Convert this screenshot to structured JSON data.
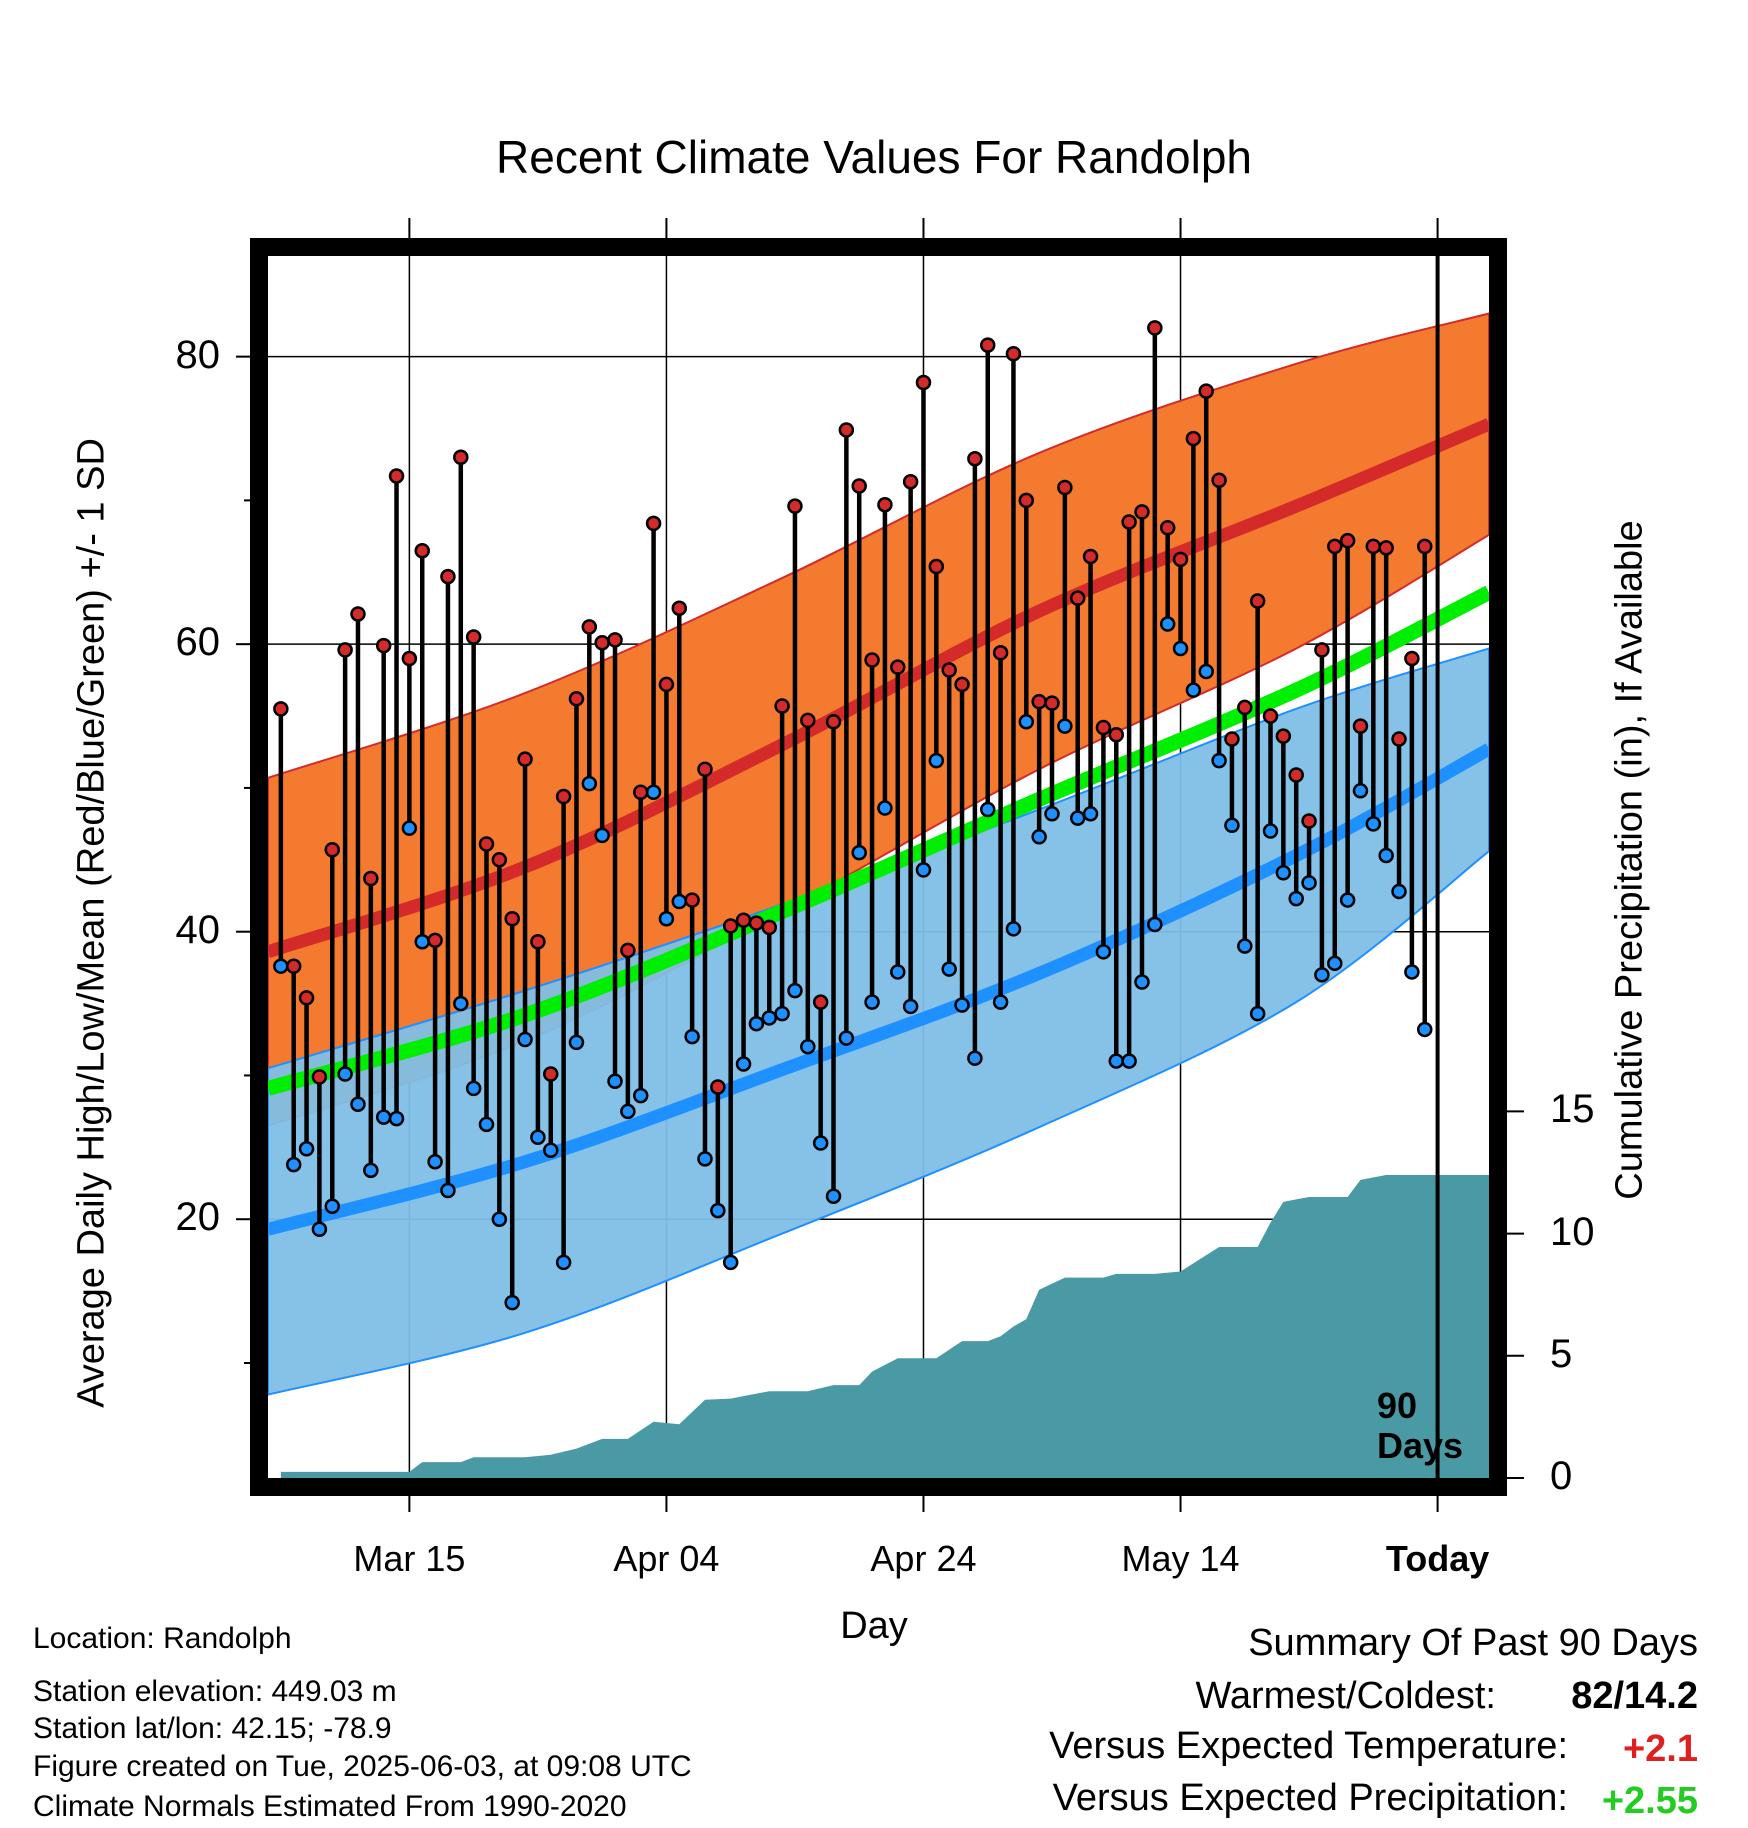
{
  "title": "Recent Climate Values For Randolph",
  "y_axis_label": "Average Daily High/Low/Mean (Red/Blue/Green) +/- 1 SD",
  "y2_axis_label": "Cumulative Precipitation (in), If Available",
  "x_axis_label": "Day",
  "window_label_line1": "90",
  "window_label_line2": "Days",
  "info": {
    "location": "Location: Randolph",
    "elevation": "Station elevation: 449.03 m",
    "latlon": "Station lat/lon: 42.15; -78.9",
    "created": "Figure created on Tue, 2025-06-03, at 09:08 UTC",
    "normals": "Climate Normals Estimated From 1990-2020"
  },
  "summary": {
    "heading": "Summary Of Past 90 Days",
    "warmest_coldest_label": "Warmest/Coldest:",
    "warmest_coldest_value": "82/14.2",
    "temp_label": "Versus Expected Temperature:",
    "temp_value": "+2.1",
    "precip_label": "Versus Expected Precipitation:",
    "precip_value": "+2.55"
  },
  "colors": {
    "high_band": "#f47a30",
    "high_line": "#d42a2a",
    "low_band": "#7fbfe6",
    "low_line": "#1e90ff",
    "mean_line": "#00ee00",
    "precip": "#4a9aa5",
    "temp_positive": "#e02020",
    "precip_positive": "#22cc22"
  },
  "chart_data": {
    "type": "line",
    "x_unit": "day",
    "xlim": [
      "2025-03-04",
      "2025-06-07"
    ],
    "x_tick_labels": [
      "Mar 15",
      "Apr 04",
      "Apr 24",
      "May 14",
      "Today"
    ],
    "x_tick_dates": [
      "2025-03-15",
      "2025-04-04",
      "2025-04-24",
      "2025-05-14",
      "2025-06-03"
    ],
    "today": "2025-06-03",
    "ylim": [
      2,
      87
    ],
    "y_ticks": [
      20,
      40,
      60,
      80
    ],
    "y2lim": [
      0,
      50
    ],
    "y2_ticks": [
      0,
      5,
      10,
      15
    ],
    "grid": true,
    "normals": {
      "dates": [
        "2025-03-04",
        "2025-03-24",
        "2025-04-13",
        "2025-05-03",
        "2025-05-23",
        "2025-06-07"
      ],
      "high_mean": [
        38.6,
        44.5,
        53.0,
        62.3,
        69.6,
        75.3
      ],
      "high_sd_upper": [
        50.7,
        56.6,
        64.6,
        73.3,
        79.5,
        83.0
      ],
      "high_sd_lower": [
        26.5,
        32.4,
        41.4,
        51.3,
        59.7,
        67.6
      ],
      "mean_normal": [
        29.1,
        34.2,
        41.4,
        49.2,
        56.8,
        63.6
      ],
      "low_mean": [
        19.3,
        24.0,
        30.4,
        37.1,
        45.3,
        52.7
      ],
      "low_sd_upper": [
        30.5,
        35.9,
        41.9,
        48.5,
        55.5,
        59.7
      ],
      "low_sd_lower": [
        7.8,
        12.1,
        19.0,
        26.4,
        35.1,
        45.6
      ]
    },
    "series": [
      {
        "name": "High",
        "color": "#d42a2a",
        "x": [
          "2025-03-05",
          "2025-03-06",
          "2025-03-07",
          "2025-03-08",
          "2025-03-09",
          "2025-03-10",
          "2025-03-11",
          "2025-03-12",
          "2025-03-13",
          "2025-03-14",
          "2025-03-15",
          "2025-03-16",
          "2025-03-17",
          "2025-03-18",
          "2025-03-19",
          "2025-03-20",
          "2025-03-21",
          "2025-03-22",
          "2025-03-23",
          "2025-03-24",
          "2025-03-25",
          "2025-03-26",
          "2025-03-27",
          "2025-03-28",
          "2025-03-29",
          "2025-03-30",
          "2025-03-31",
          "2025-04-01",
          "2025-04-02",
          "2025-04-03",
          "2025-04-04",
          "2025-04-05",
          "2025-04-06",
          "2025-04-07",
          "2025-04-08",
          "2025-04-09",
          "2025-04-10",
          "2025-04-11",
          "2025-04-12",
          "2025-04-13",
          "2025-04-14",
          "2025-04-15",
          "2025-04-16",
          "2025-04-17",
          "2025-04-18",
          "2025-04-19",
          "2025-04-20",
          "2025-04-21",
          "2025-04-22",
          "2025-04-23",
          "2025-04-24",
          "2025-04-25",
          "2025-04-26",
          "2025-04-27",
          "2025-04-28",
          "2025-04-29",
          "2025-04-30",
          "2025-05-01",
          "2025-05-02",
          "2025-05-03",
          "2025-05-04",
          "2025-05-05",
          "2025-05-06",
          "2025-05-07",
          "2025-05-08",
          "2025-05-09",
          "2025-05-10",
          "2025-05-11",
          "2025-05-12",
          "2025-05-13",
          "2025-05-14",
          "2025-05-15",
          "2025-05-16",
          "2025-05-17",
          "2025-05-18",
          "2025-05-19",
          "2025-05-20",
          "2025-05-21",
          "2025-05-22",
          "2025-05-23",
          "2025-05-24",
          "2025-05-25",
          "2025-05-26",
          "2025-05-27",
          "2025-05-28",
          "2025-05-29",
          "2025-05-30",
          "2025-05-31",
          "2025-06-01",
          "2025-06-02"
        ],
        "values": [
          55.5,
          37.6,
          35.4,
          29.9,
          45.7,
          59.6,
          62.1,
          43.7,
          59.9,
          71.7,
          59.0,
          66.5,
          39.4,
          64.7,
          73.0,
          60.5,
          46.1,
          45.0,
          40.9,
          52.0,
          39.3,
          30.1,
          49.4,
          56.2,
          61.2,
          60.1,
          60.3,
          38.7,
          49.7,
          68.4,
          57.2,
          62.5,
          42.2,
          51.3,
          29.2,
          40.4,
          40.8,
          40.6,
          40.3,
          55.7,
          69.6,
          54.7,
          35.1,
          54.6,
          74.9,
          71.0,
          58.9,
          69.7,
          58.4,
          71.3,
          78.2,
          65.4,
          58.2,
          57.2,
          72.9,
          80.8,
          59.4,
          80.2,
          70.0,
          56.0,
          55.9,
          70.9,
          63.2,
          66.1,
          54.2,
          53.7,
          68.5,
          69.2,
          82.0,
          68.1,
          65.9,
          74.3,
          77.6,
          71.4,
          53.4,
          55.6,
          63.0,
          55.0,
          53.6,
          50.9,
          47.7,
          59.6,
          66.8,
          67.2,
          54.3,
          66.8,
          66.7,
          53.4,
          59.0,
          66.8
        ]
      },
      {
        "name": "Low",
        "color": "#1e90ff",
        "x": [
          "2025-03-05",
          "2025-03-06",
          "2025-03-07",
          "2025-03-08",
          "2025-03-09",
          "2025-03-10",
          "2025-03-11",
          "2025-03-12",
          "2025-03-13",
          "2025-03-14",
          "2025-03-15",
          "2025-03-16",
          "2025-03-17",
          "2025-03-18",
          "2025-03-19",
          "2025-03-20",
          "2025-03-21",
          "2025-03-22",
          "2025-03-23",
          "2025-03-24",
          "2025-03-25",
          "2025-03-26",
          "2025-03-27",
          "2025-03-28",
          "2025-03-29",
          "2025-03-30",
          "2025-03-31",
          "2025-04-01",
          "2025-04-02",
          "2025-04-03",
          "2025-04-04",
          "2025-04-05",
          "2025-04-06",
          "2025-04-07",
          "2025-04-08",
          "2025-04-09",
          "2025-04-10",
          "2025-04-11",
          "2025-04-12",
          "2025-04-13",
          "2025-04-14",
          "2025-04-15",
          "2025-04-16",
          "2025-04-17",
          "2025-04-18",
          "2025-04-19",
          "2025-04-20",
          "2025-04-21",
          "2025-04-22",
          "2025-04-23",
          "2025-04-24",
          "2025-04-25",
          "2025-04-26",
          "2025-04-27",
          "2025-04-28",
          "2025-04-29",
          "2025-04-30",
          "2025-05-01",
          "2025-05-02",
          "2025-05-03",
          "2025-05-04",
          "2025-05-05",
          "2025-05-06",
          "2025-05-07",
          "2025-05-08",
          "2025-05-09",
          "2025-05-10",
          "2025-05-11",
          "2025-05-12",
          "2025-05-13",
          "2025-05-14",
          "2025-05-15",
          "2025-05-16",
          "2025-05-17",
          "2025-05-18",
          "2025-05-19",
          "2025-05-20",
          "2025-05-21",
          "2025-05-22",
          "2025-05-23",
          "2025-05-24",
          "2025-05-25",
          "2025-05-26",
          "2025-05-27",
          "2025-05-28",
          "2025-05-29",
          "2025-05-30",
          "2025-05-31",
          "2025-06-01",
          "2025-06-02"
        ],
        "values": [
          37.6,
          23.8,
          24.9,
          19.3,
          20.9,
          30.1,
          28.0,
          23.4,
          27.1,
          27.0,
          47.2,
          39.3,
          24.0,
          22.0,
          35.0,
          29.1,
          26.6,
          20.0,
          14.2,
          32.5,
          25.7,
          24.8,
          17.0,
          32.3,
          50.3,
          46.7,
          29.6,
          27.5,
          28.6,
          49.7,
          40.9,
          42.1,
          32.7,
          24.2,
          20.6,
          17.0,
          30.8,
          33.6,
          34.0,
          34.3,
          35.9,
          32.0,
          25.3,
          21.6,
          32.6,
          45.5,
          35.1,
          48.6,
          37.2,
          34.8,
          44.3,
          51.9,
          37.4,
          34.9,
          31.2,
          48.5,
          35.1,
          40.2,
          54.6,
          46.6,
          48.2,
          54.3,
          47.9,
          48.2,
          38.6,
          31.0,
          31.0,
          36.5,
          40.5,
          61.4,
          59.7,
          56.8,
          58.1,
          51.9,
          47.4,
          39.0,
          34.3,
          47.0,
          44.1,
          42.3,
          43.4,
          37.0,
          37.8,
          42.2,
          49.8,
          47.5,
          45.3,
          42.8,
          37.2,
          33.2
        ]
      },
      {
        "name": "Cumulative Precipitation",
        "color": "#4a9aa5",
        "unit": "in",
        "x": [
          "2025-03-05",
          "2025-03-15",
          "2025-03-16",
          "2025-03-19",
          "2025-03-20",
          "2025-03-24",
          "2025-03-26",
          "2025-03-28",
          "2025-03-30",
          "2025-04-01",
          "2025-04-03",
          "2025-04-05",
          "2025-04-07",
          "2025-04-09",
          "2025-04-12",
          "2025-04-15",
          "2025-04-17",
          "2025-04-19",
          "2025-04-20",
          "2025-04-22",
          "2025-04-25",
          "2025-04-27",
          "2025-04-29",
          "2025-04-30",
          "2025-05-01",
          "2025-05-02",
          "2025-05-03",
          "2025-05-05",
          "2025-05-08",
          "2025-05-09",
          "2025-05-12",
          "2025-05-14",
          "2025-05-17",
          "2025-05-20",
          "2025-05-21",
          "2025-05-22",
          "2025-05-23",
          "2025-05-24",
          "2025-05-27",
          "2025-05-28",
          "2025-05-30",
          "2025-06-03",
          "2025-06-07"
        ],
        "values": [
          0.25,
          0.25,
          0.65,
          0.65,
          0.85,
          0.85,
          0.95,
          1.2,
          1.6,
          1.6,
          2.3,
          2.2,
          3.2,
          3.25,
          3.55,
          3.55,
          3.8,
          3.8,
          4.35,
          4.9,
          4.9,
          5.6,
          5.6,
          5.8,
          6.2,
          6.5,
          7.7,
          8.2,
          8.2,
          8.35,
          8.35,
          8.45,
          9.45,
          9.45,
          10.45,
          11.3,
          11.4,
          11.5,
          11.5,
          12.2,
          12.4,
          12.4,
          12.4
        ]
      }
    ]
  }
}
